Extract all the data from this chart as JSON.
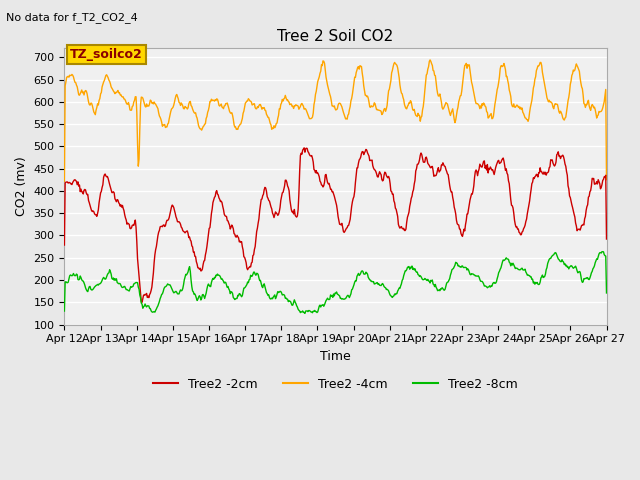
{
  "title": "Tree 2 Soil CO2",
  "subtitle": "No data for f_T2_CO2_4",
  "xlabel": "Time",
  "ylabel": "CO2 (mv)",
  "ylim": [
    100,
    720
  ],
  "yticks": [
    100,
    150,
    200,
    250,
    300,
    350,
    400,
    450,
    500,
    550,
    600,
    650,
    700
  ],
  "x_labels": [
    "Apr 12",
    "Apr 13",
    "Apr 14",
    "Apr 15",
    "Apr 16",
    "Apr 17",
    "Apr 18",
    "Apr 19",
    "Apr 20",
    "Apr 21",
    "Apr 22",
    "Apr 23",
    "Apr 24",
    "Apr 25",
    "Apr 26",
    "Apr 27"
  ],
  "legend_label_box": "TZ_soilco2",
  "legend_box_color": "#FFD700",
  "legend_box_text_color": "#8B0000",
  "bg_color": "#E8E8E8",
  "plot_bg_color": "#F0F0F0",
  "line_colors": {
    "red": "#CC0000",
    "orange": "#FFA500",
    "green": "#00BB00"
  },
  "legend_entries": [
    "Tree2 -2cm",
    "Tree2 -4cm",
    "Tree2 -8cm"
  ]
}
